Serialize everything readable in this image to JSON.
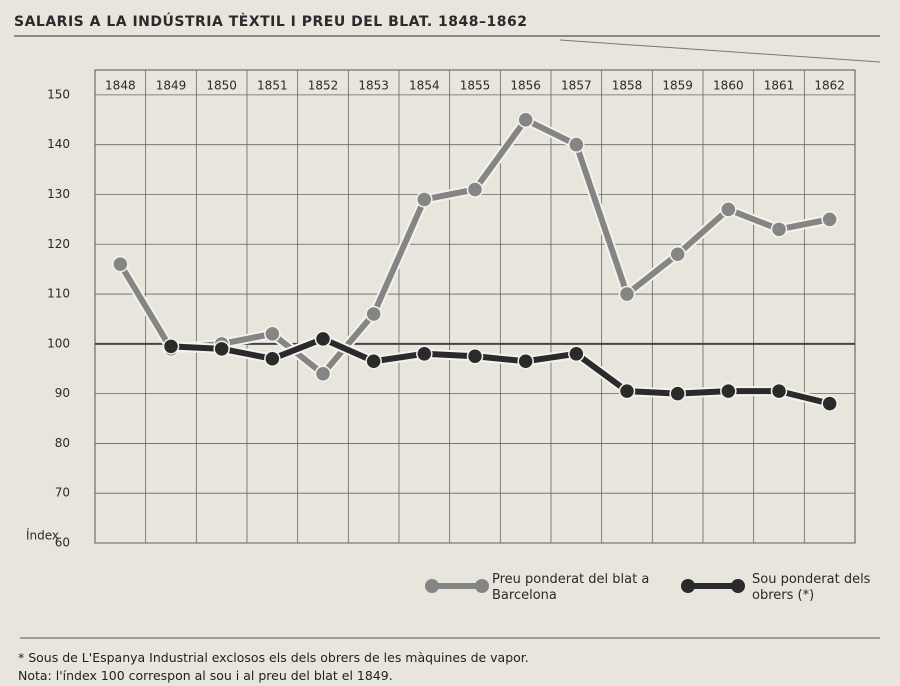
{
  "chart_data": {
    "type": "line",
    "title": "SALARIS A LA INDÚSTRIA TÈXTIL I PREU DEL BLAT. 1848–1862",
    "ylabel": "Índex",
    "categories": [
      "1848",
      "1849",
      "1850",
      "1851",
      "1852",
      "1853",
      "1854",
      "1855",
      "1856",
      "1857",
      "1858",
      "1859",
      "1860",
      "1861",
      "1862"
    ],
    "series": [
      {
        "name": "Preu ponderat del blat a Barcelona",
        "color": "#858583",
        "values": [
          116,
          99,
          100,
          102,
          94,
          106,
          129,
          131,
          145,
          140,
          110,
          118,
          127,
          123,
          125
        ]
      },
      {
        "name": "Sou ponderat dels obrers (*)",
        "color": "#2a2a2a",
        "values": [
          null,
          99.5,
          99,
          97,
          101,
          96.5,
          98,
          97.5,
          96.5,
          98,
          90.5,
          90,
          90.5,
          90.5,
          88
        ]
      }
    ],
    "ylim": [
      60,
      155
    ],
    "yticks": [
      60,
      70,
      80,
      90,
      100,
      110,
      120,
      130,
      140,
      150
    ],
    "grid": true
  },
  "notes": [
    "* Sous de L'Espanya Industrial exclosos els dels obrers de les màquines de vapor.",
    "Nota: l'índex 100 correspon al sou i al preu del blat el 1849."
  ]
}
